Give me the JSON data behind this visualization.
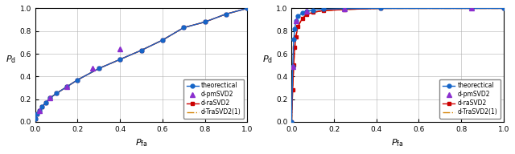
{
  "fig1": {
    "theoretical_pfa": [
      0.0,
      0.01,
      0.02,
      0.03,
      0.05,
      0.07,
      0.1,
      0.15,
      0.2,
      0.3,
      0.4,
      0.5,
      0.6,
      0.7,
      0.8,
      0.9,
      1.0
    ],
    "theoretical_pd": [
      0.03,
      0.07,
      0.1,
      0.13,
      0.17,
      0.21,
      0.25,
      0.31,
      0.37,
      0.47,
      0.55,
      0.63,
      0.72,
      0.83,
      0.88,
      0.95,
      1.0
    ],
    "d_pmSVD2_pfa": [
      0.02,
      0.07,
      0.15,
      0.27,
      0.4
    ],
    "d_pmSVD2_pd": [
      0.1,
      0.21,
      0.31,
      0.47,
      0.64
    ],
    "d_raSVD2_pfa": [
      0.0,
      0.01,
      0.02,
      0.03,
      0.05,
      0.07,
      0.1,
      0.15,
      0.2,
      0.3,
      0.4,
      0.5,
      0.6,
      0.7,
      0.8,
      0.9,
      1.0
    ],
    "d_raSVD2_pd": [
      0.03,
      0.07,
      0.1,
      0.13,
      0.17,
      0.21,
      0.25,
      0.31,
      0.37,
      0.47,
      0.55,
      0.63,
      0.72,
      0.83,
      0.88,
      0.95,
      1.0
    ],
    "d_TraSVD2_pfa": [
      0.0,
      0.01,
      0.02,
      0.03,
      0.05,
      0.07,
      0.1,
      0.15,
      0.2,
      0.3,
      0.4,
      0.5,
      0.6,
      0.7,
      0.8,
      0.9,
      1.0
    ],
    "d_TraSVD2_pd": [
      0.03,
      0.07,
      0.1,
      0.13,
      0.17,
      0.21,
      0.25,
      0.31,
      0.37,
      0.47,
      0.55,
      0.63,
      0.72,
      0.83,
      0.88,
      0.95,
      1.0
    ],
    "xlabel": "$P_{\\mathrm{fa}}$",
    "ylabel": "$P_{\\mathrm{d}}$"
  },
  "fig2": {
    "theoretical_pfa": [
      0.0,
      0.005,
      0.01,
      0.015,
      0.02,
      0.03,
      0.05,
      0.07,
      0.1,
      0.15,
      0.25,
      0.42,
      0.85,
      1.0
    ],
    "theoretical_pd": [
      0.0,
      0.49,
      0.73,
      0.82,
      0.89,
      0.93,
      0.96,
      0.975,
      0.985,
      0.993,
      0.997,
      1.0,
      1.0,
      1.0
    ],
    "d_pmSVD2_pfa": [
      0.005,
      0.02,
      0.07,
      0.25,
      0.85
    ],
    "d_pmSVD2_pd": [
      0.49,
      0.89,
      0.975,
      0.997,
      1.0
    ],
    "d_raSVD2_pfa": [
      0.0,
      0.005,
      0.01,
      0.015,
      0.02,
      0.03,
      0.05,
      0.07,
      0.1,
      0.15,
      0.25,
      0.42,
      0.85,
      1.0
    ],
    "d_raSVD2_pd": [
      0.0,
      0.28,
      0.5,
      0.66,
      0.75,
      0.84,
      0.91,
      0.945,
      0.965,
      0.98,
      0.99,
      1.0,
      1.0,
      1.0
    ],
    "d_TraSVD2_pfa": [
      0.0,
      0.005,
      0.01,
      0.015,
      0.02,
      0.03,
      0.05,
      0.07,
      0.1,
      0.15,
      0.25,
      0.42,
      0.85,
      1.0
    ],
    "d_TraSVD2_pd": [
      0.0,
      0.28,
      0.5,
      0.66,
      0.75,
      0.84,
      0.91,
      0.945,
      0.965,
      0.98,
      0.99,
      1.0,
      1.0,
      1.0
    ],
    "xlabel": "$P_{\\mathrm{fa}}$",
    "ylabel": "$P_{\\mathrm{d}}$"
  },
  "colors": {
    "theoretical": "#1565c8",
    "d_pmSVD2": "#8b2fcf",
    "d_raSVD2": "#cc0000",
    "d_TraSVD2": "#d48000"
  },
  "legend_labels": [
    "theorectical",
    "d-pmSVD2",
    "d-raSVD2",
    "d-TraSVD2(1)"
  ],
  "figsize": [
    6.4,
    1.92
  ],
  "dpi": 100
}
